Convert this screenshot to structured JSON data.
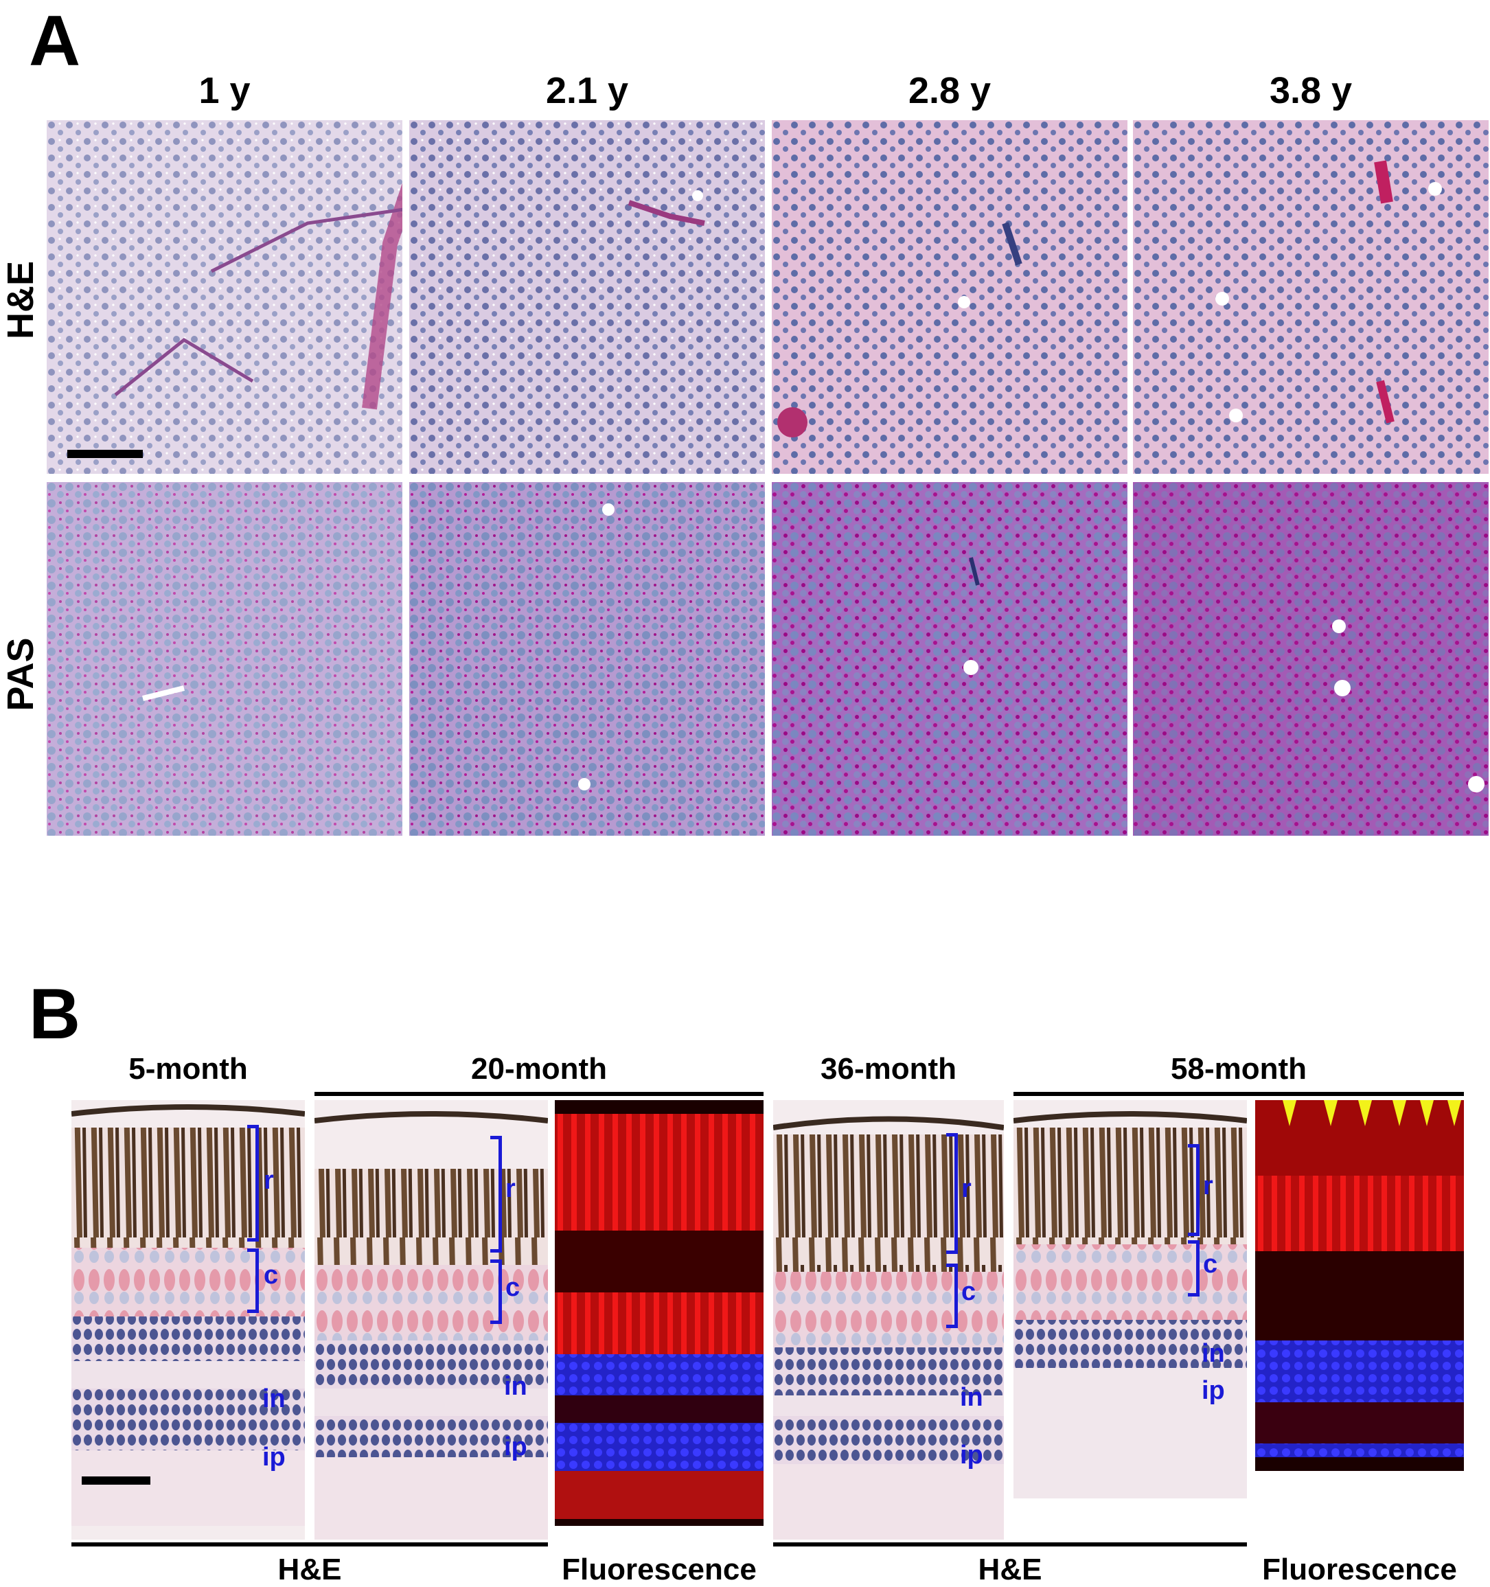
{
  "panel_a": {
    "letter": "A",
    "columns": [
      "1 y",
      "2.1 y",
      "2.8 y",
      "3.8 y"
    ],
    "rows": [
      "H&E",
      "PAS"
    ]
  },
  "panel_b": {
    "letter": "B",
    "ages": [
      "5-month",
      "20-month",
      "36-month",
      "58-month"
    ],
    "stains": [
      "H&E",
      "Fluorescence",
      "H&E",
      "Fluorescence"
    ],
    "layers": {
      "r": "r",
      "c": "c",
      "in": "in",
      "ip": "ip"
    }
  },
  "colors": {
    "label_blue": "#1a1ad6",
    "arrow_yellow": "#f2f21a",
    "he_stain": "#d7c5e0",
    "pas_stain": "#a971c1",
    "fluor_red": "#d81414",
    "fluor_blue": "#2a2ae0"
  }
}
